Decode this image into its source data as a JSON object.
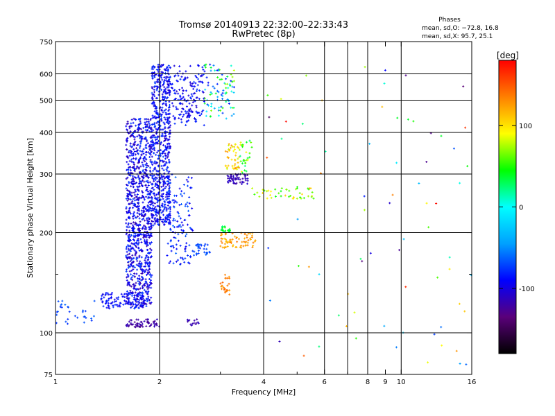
{
  "chart_data": {
    "type": "scatter",
    "title": "Tromsø 20140913 22:32:00–22:33:43",
    "subtitle": "RwPretec (8p)",
    "xlabel": "Frequency [MHz]",
    "ylabel": "Stationary phase Virtual Height [km]",
    "x_scale": "log",
    "y_scale": "log",
    "xlim": [
      1,
      16
    ],
    "ylim": [
      75,
      750
    ],
    "x_ticks": [
      1,
      2,
      4,
      6,
      8,
      9,
      10,
      16
    ],
    "x_tick_labels": [
      "1",
      "2",
      "4",
      "6",
      "8",
      "9",
      "10",
      "16"
    ],
    "x_minor_ticks": [
      3,
      5,
      7
    ],
    "x_gridlines": [
      2,
      4,
      6,
      7,
      8,
      10
    ],
    "y_ticks": [
      75,
      100,
      200,
      300,
      400,
      500,
      600,
      750
    ],
    "y_tick_labels": [
      "75",
      "100",
      "200",
      "300",
      "400",
      "500",
      "600",
      "750"
    ],
    "y_minor_ticks": [
      150
    ],
    "y_gridlines": [
      100,
      200,
      300,
      400,
      500,
      600
    ],
    "grid": true,
    "colorbar": {
      "label": "[deg]",
      "range": [
        -180,
        180
      ],
      "ticks": [
        100,
        0,
        -100
      ],
      "tick_labels": [
        "100",
        "0",
        "-100"
      ],
      "colormap": [
        "#000000",
        "#5a007a",
        "#0000ff",
        "#00a0ff",
        "#00ffff",
        "#00ff00",
        "#ffff00",
        "#ff8000",
        "#ff0000"
      ]
    },
    "stats": {
      "heading": "Phases",
      "line_o": "mean, sd,O: −72.8, 16.8",
      "line_x": "mean, sd,X:  95.7, 25.1"
    },
    "clusters": [
      {
        "f": [
          1.6,
          1.9
        ],
        "h": [
          120,
          440
        ],
        "phase": [
          -120,
          -70
        ],
        "density": 1000
      },
      {
        "f": [
          1.9,
          2.15
        ],
        "h": [
          210,
          640
        ],
        "phase": [
          -110,
          -70
        ],
        "density": 650
      },
      {
        "f": [
          1.35,
          1.8
        ],
        "h": [
          118,
          132
        ],
        "phase": [
          -105,
          -75
        ],
        "density": 110
      },
      {
        "f": [
          1.0,
          1.3
        ],
        "h": [
          105,
          125
        ],
        "phase": [
          -80,
          -60
        ],
        "density": 30
      },
      {
        "f": [
          1.6,
          2.0
        ],
        "h": [
          104,
          110
        ],
        "phase": [
          -130,
          -110
        ],
        "density": 60
      },
      {
        "f": [
          2.1,
          2.5
        ],
        "h": [
          160,
          300
        ],
        "phase": [
          -100,
          -60
        ],
        "density": 120
      },
      {
        "f": [
          2.1,
          2.7
        ],
        "h": [
          420,
          640
        ],
        "phase": [
          -110,
          -75
        ],
        "density": 180
      },
      {
        "f": [
          2.5,
          2.8
        ],
        "h": [
          170,
          185
        ],
        "phase": [
          -80,
          -60
        ],
        "density": 30
      },
      {
        "f": [
          2.4,
          2.6
        ],
        "h": [
          105,
          110
        ],
        "phase": [
          -125,
          -110
        ],
        "density": 15
      },
      {
        "f": [
          2.7,
          3.3
        ],
        "h": [
          440,
          640
        ],
        "phase": [
          -90,
          80
        ],
        "density": 90
      },
      {
        "f": [
          3.1,
          3.6
        ],
        "h": [
          280,
          300
        ],
        "phase": [
          -125,
          -105
        ],
        "density": 55
      },
      {
        "f": [
          3.1,
          3.4
        ],
        "h": [
          310,
          370
        ],
        "phase": [
          80,
          130
        ],
        "density": 45
      },
      {
        "f": [
          3.4,
          3.7
        ],
        "h": [
          300,
          380
        ],
        "phase": [
          20,
          100
        ],
        "density": 30
      },
      {
        "f": [
          3.0,
          3.8
        ],
        "h": [
          180,
          200
        ],
        "phase": [
          110,
          140
        ],
        "density": 70
      },
      {
        "f": [
          3.0,
          3.2
        ],
        "h": [
          200,
          210
        ],
        "phase": [
          20,
          50
        ],
        "density": 20
      },
      {
        "f": [
          3.0,
          3.2
        ],
        "h": [
          130,
          150
        ],
        "phase": [
          120,
          150
        ],
        "density": 25
      },
      {
        "f": [
          3.7,
          5.6
        ],
        "h": [
          253,
          272
        ],
        "phase": [
          40,
          110
        ],
        "density": 45
      },
      {
        "f": [
          4.0,
          16.0
        ],
        "h": [
          78,
          660
        ],
        "phase": [
          -150,
          180
        ],
        "density": 75
      }
    ]
  }
}
